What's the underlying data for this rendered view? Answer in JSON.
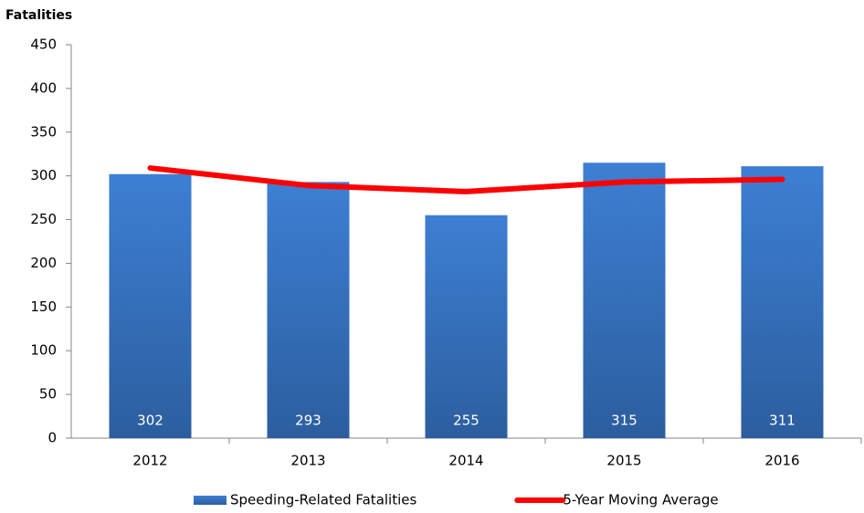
{
  "chart_data": {
    "type": "bar",
    "ylabel": "Fatalities",
    "categories": [
      "2012",
      "2013",
      "2014",
      "2015",
      "2016"
    ],
    "series": [
      {
        "name": "Speeding-Related Fatalities",
        "type": "bar",
        "color": "#3a78c9",
        "data_labels": true,
        "values": [
          302,
          293,
          255,
          315,
          311
        ]
      },
      {
        "name": "5-Year Moving Average",
        "type": "line",
        "color": "#ff0000",
        "values": [
          309,
          289,
          282,
          293,
          296
        ]
      }
    ],
    "ylim": [
      0,
      450
    ],
    "yticks": [
      0,
      50,
      100,
      150,
      200,
      250,
      300,
      350,
      400,
      450
    ],
    "grid": false,
    "legend": "bottom"
  }
}
